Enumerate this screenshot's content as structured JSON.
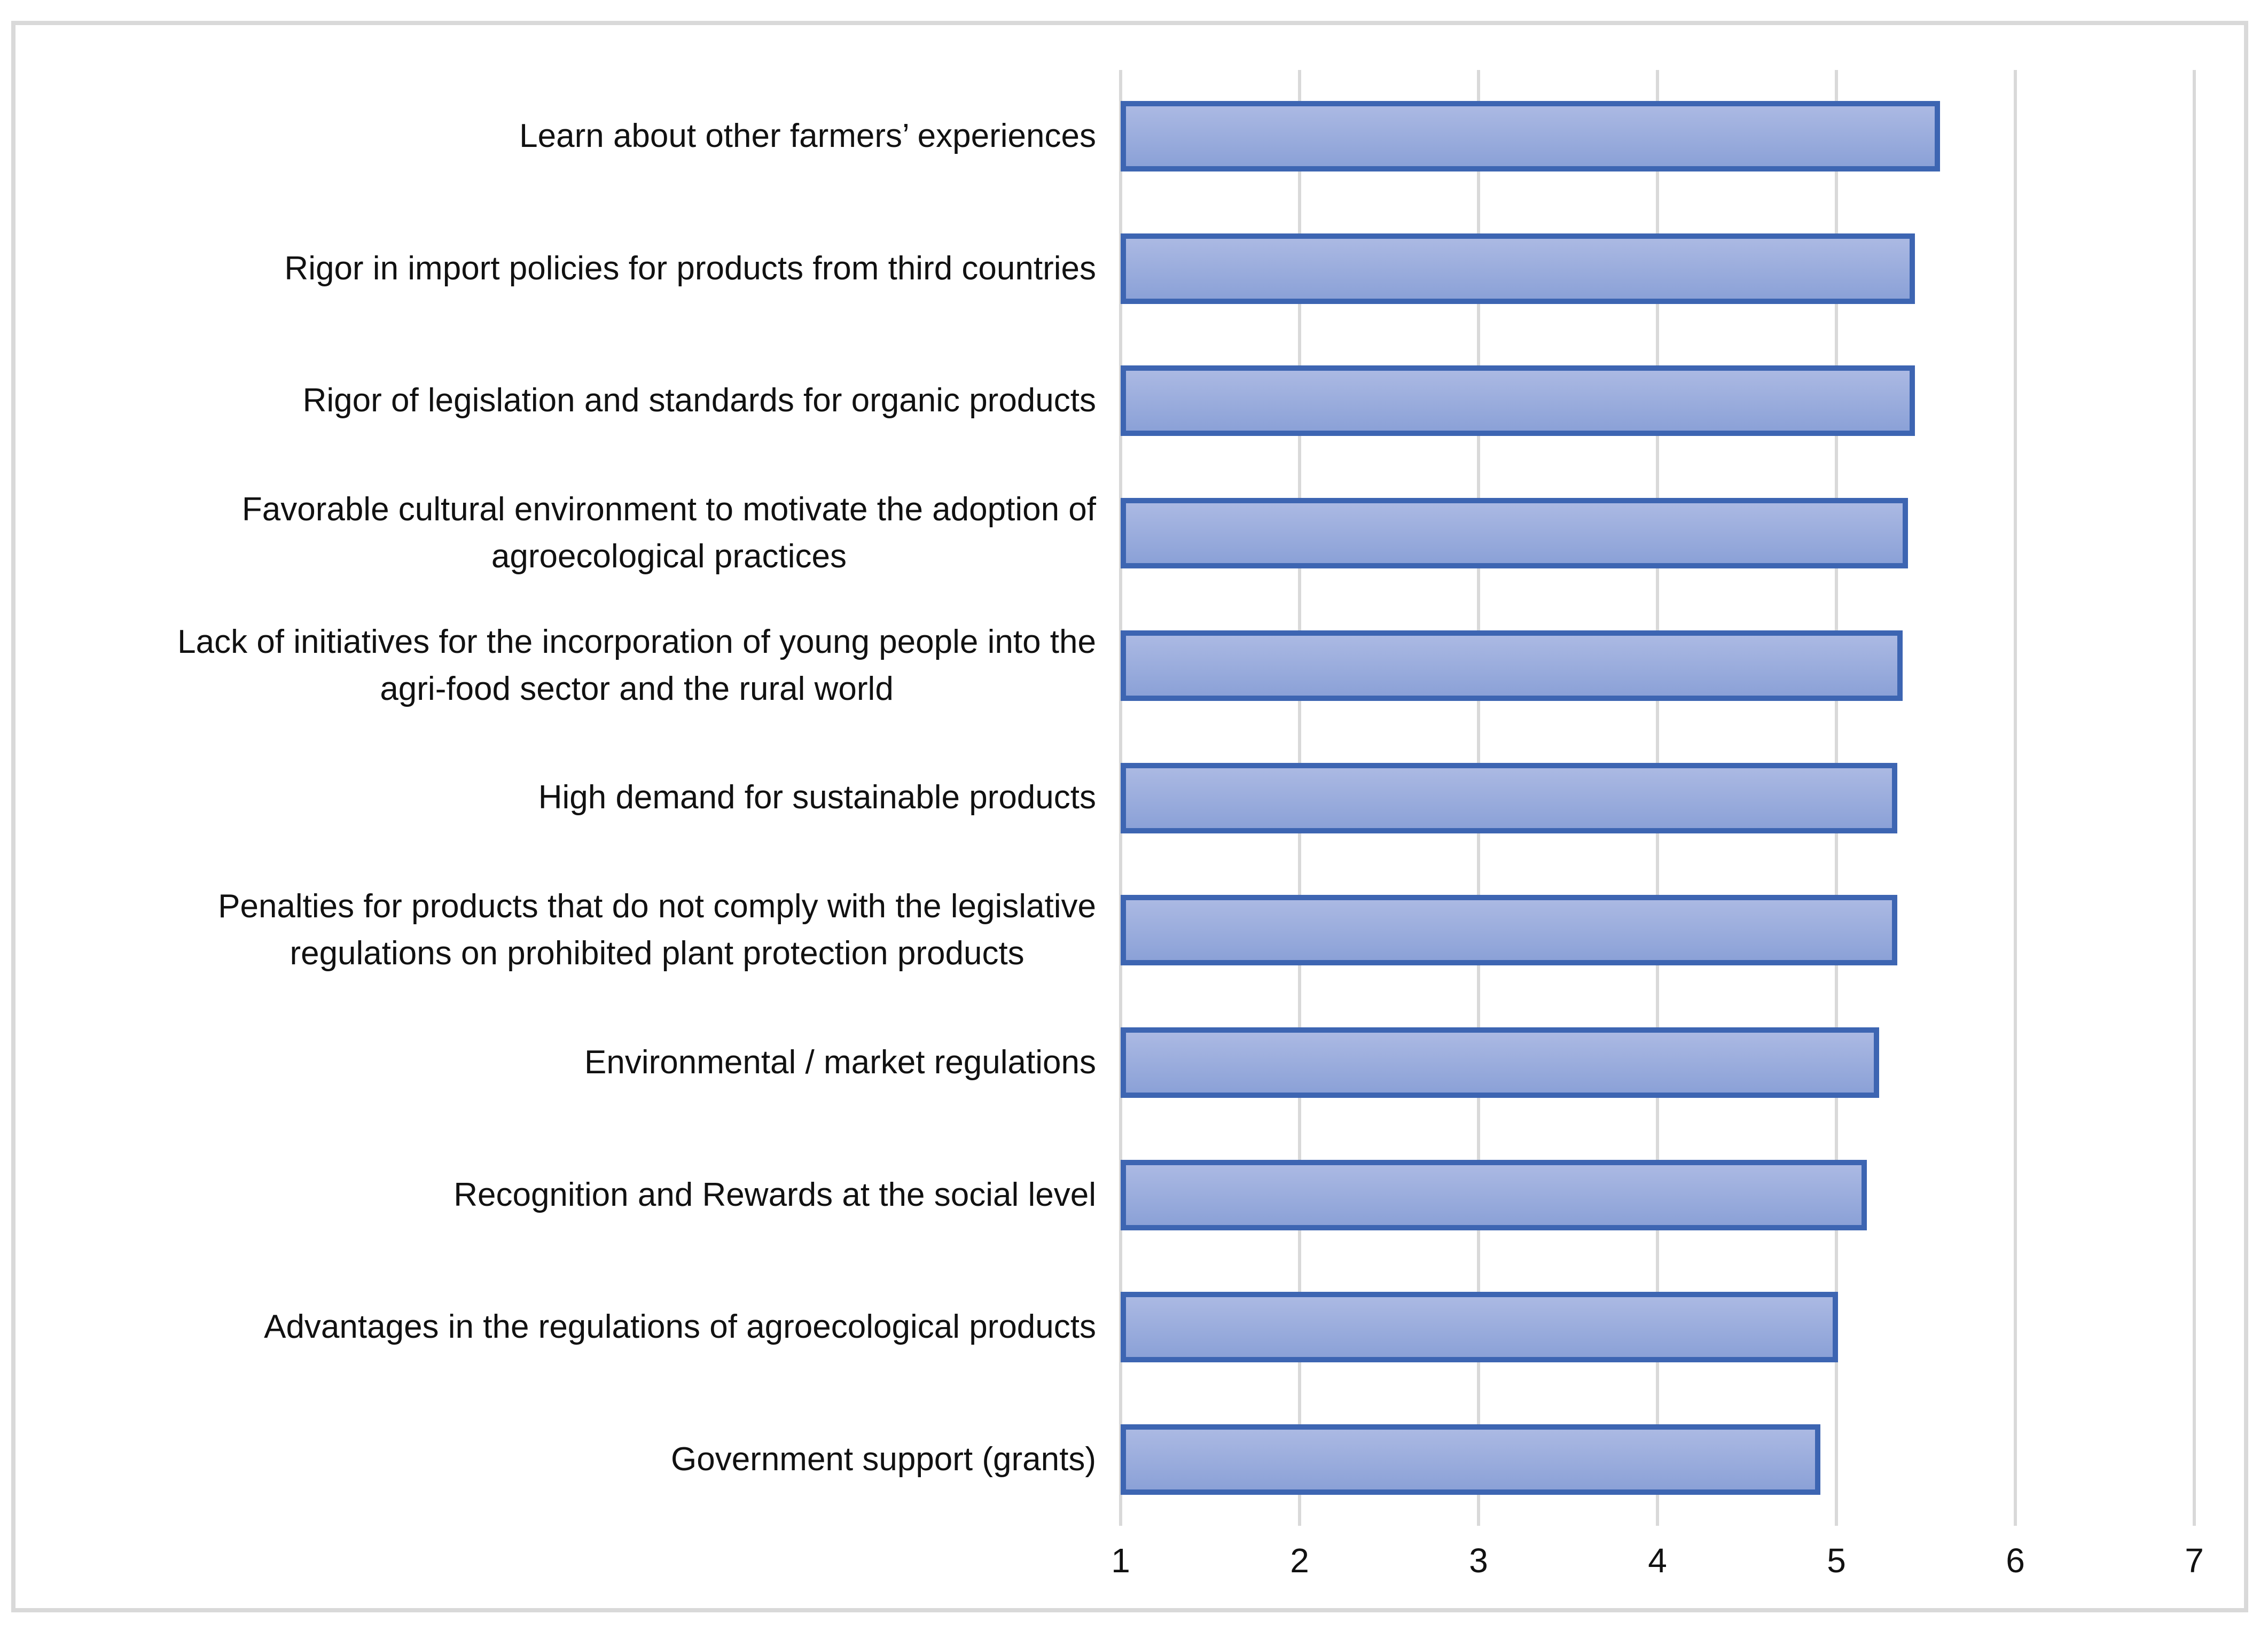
{
  "chart_data": {
    "type": "bar",
    "orientation": "horizontal",
    "title": "",
    "xlabel": "",
    "ylabel": "",
    "categories": [
      "Learn about other farmers’ experiences",
      "Rigor in import policies for products from third countries",
      "Rigor of legislation and standards for organic products",
      "Favorable cultural environment to motivate the adoption of\nagroecological practices",
      "Lack of initiatives for the incorporation of young people into the\nagri-food sector and the rural world",
      "High demand for sustainable products",
      "Penalties for products that do not comply with the legislative\nregulations on prohibited plant protection products",
      "Environmental / market regulations",
      "Recognition and Rewards at the social level",
      "Advantages in the regulations of agroecological products",
      "Government support (grants)"
    ],
    "values": [
      5.58,
      5.44,
      5.44,
      5.4,
      5.37,
      5.34,
      5.34,
      5.24,
      5.17,
      5.01,
      4.91
    ],
    "xlim": [
      1,
      7
    ],
    "x_ticks": [
      1,
      2,
      3,
      4,
      5,
      6,
      7
    ],
    "grid": "vertical-gridlines-on",
    "legend": "none",
    "colors": {
      "bar_fill_top": "#abb9e3",
      "bar_fill_bottom": "#8ba1d7",
      "bar_border": "#3d65b2",
      "gridline": "#d9d9d9",
      "frame": "#d9d9d9",
      "text": "#111111",
      "background": "#ffffff"
    }
  }
}
